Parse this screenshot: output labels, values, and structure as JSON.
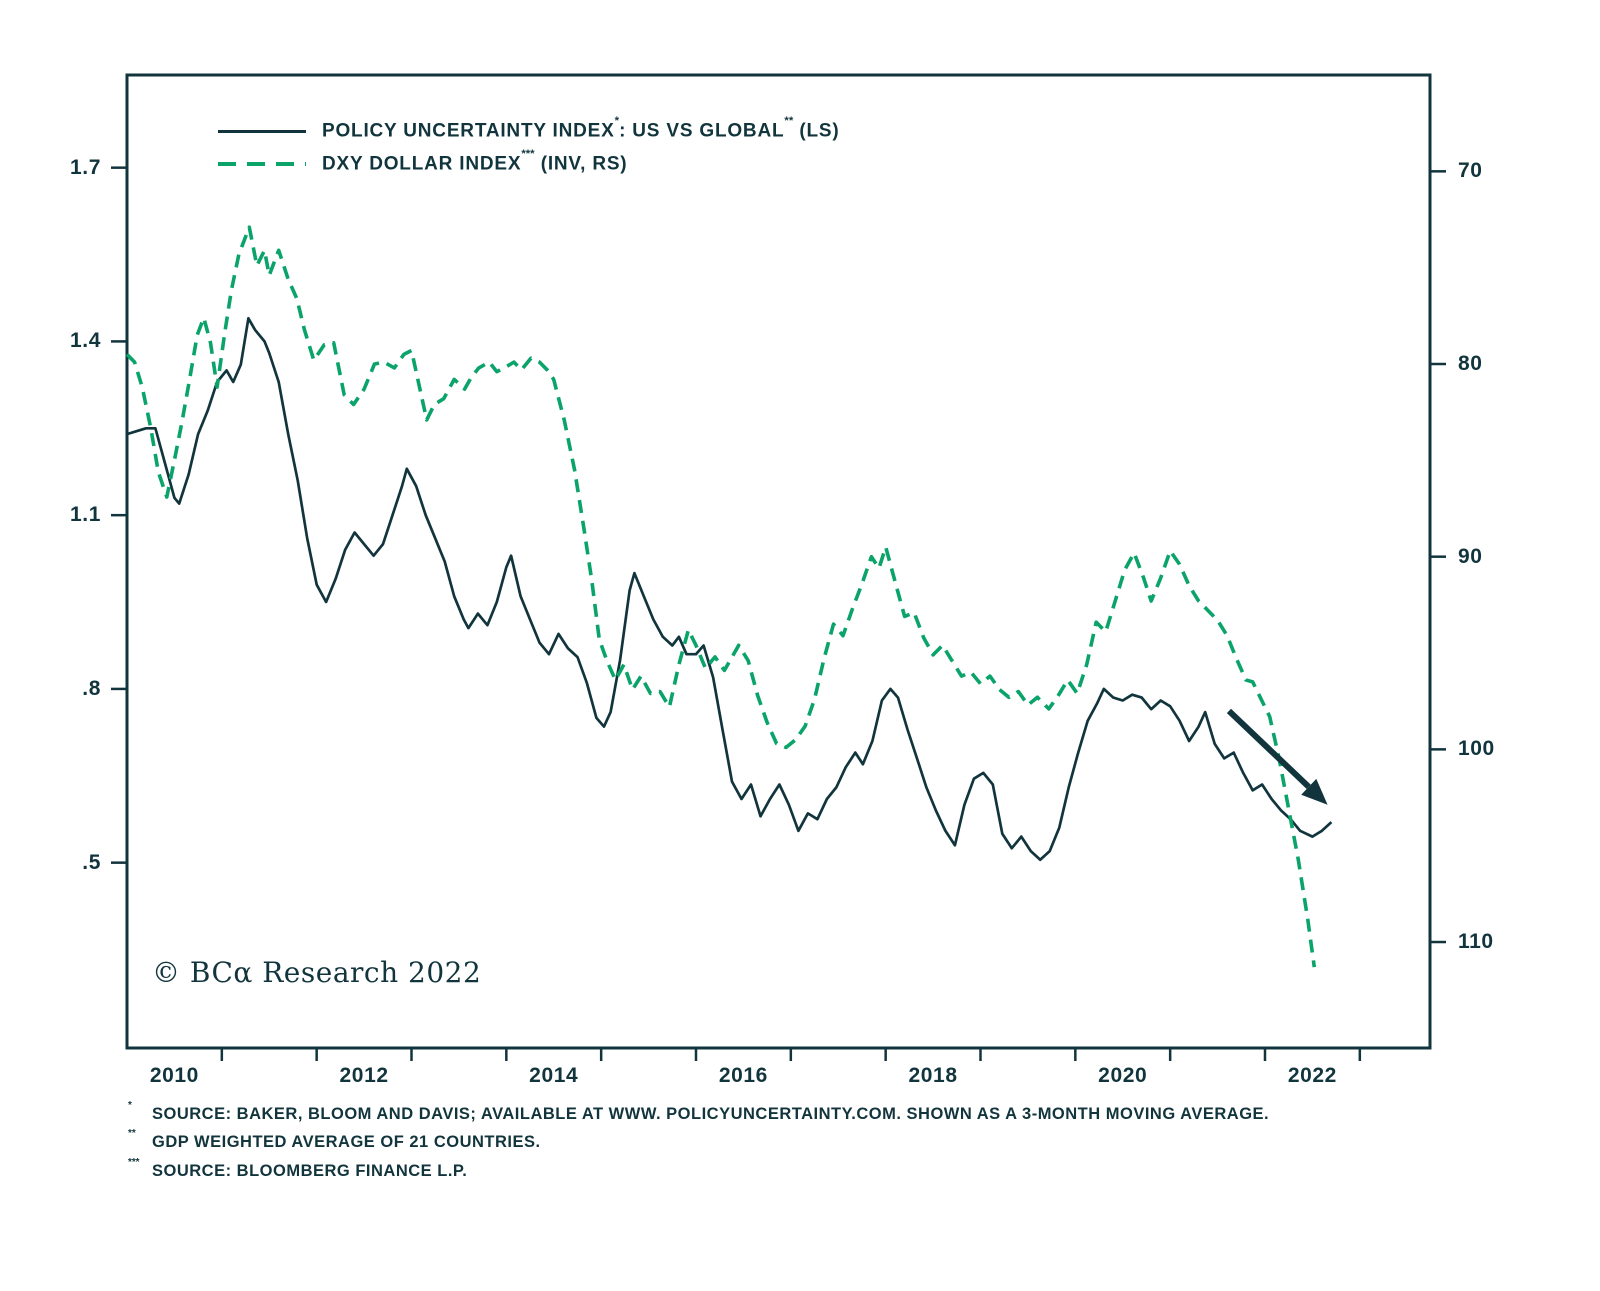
{
  "figure": {
    "copyright": "© BCα Research 2022"
  },
  "colors": {
    "ink": "#12353d",
    "green": "#0aa36a"
  },
  "legend": {
    "items": [
      {
        "text1": "POLICY UNCERTAINTY INDEX",
        "sup1": "*",
        "text2": ": US VS GLOBAL",
        "sup2": "**",
        "text3": " (LS)"
      },
      {
        "text1": "DXY DOLLAR INDEX",
        "sup1": "***",
        "text2": " (INV, RS)"
      }
    ]
  },
  "footnotes": [
    {
      "marker": "*",
      "text": "SOURCE: BAKER, BLOOM AND DAVIS; AVAILABLE AT WWW. POLICYUNCERTAINTY.COM. SHOWN AS A 3-MONTH MOVING AVERAGE."
    },
    {
      "marker": "**",
      "text": "GDP WEIGHTED AVERAGE OF 21 COUNTRIES."
    },
    {
      "marker": "***",
      "text": "SOURCE: BLOOMBERG FINANCE L.P."
    }
  ],
  "chart_data": {
    "type": "line",
    "title": "",
    "grid": false,
    "legend_position": "top-left-inside",
    "x_axis": {
      "label": "",
      "ticks": [
        2010,
        2012,
        2014,
        2016,
        2018,
        2020,
        2022
      ],
      "minor_ticks_every_year": true,
      "range": [
        2010,
        2023.74
      ]
    },
    "y_axis_left": {
      "label": "",
      "ticks": [
        "1.7",
        "1.4",
        "1.1",
        ".8",
        ".5"
      ],
      "tick_values": [
        1.7,
        1.4,
        1.1,
        0.8,
        0.5
      ],
      "range": [
        0.18,
        1.86
      ]
    },
    "y_axis_right": {
      "label": "",
      "inverted": true,
      "ticks": [
        "70",
        "80",
        "90",
        "100",
        "110"
      ],
      "tick_values": [
        70,
        80,
        90,
        100,
        110
      ],
      "range": [
        65,
        115.5
      ]
    },
    "series": [
      {
        "name": "POLICY UNCERTAINTY INDEX: US VS GLOBAL (LS)",
        "axis": "left",
        "line": "solid",
        "color": "#12353d",
        "points": [
          [
            2010.0,
            1.24
          ],
          [
            2010.1,
            1.245
          ],
          [
            2010.2,
            1.25
          ],
          [
            2010.3,
            1.25
          ],
          [
            2010.4,
            1.19
          ],
          [
            2010.5,
            1.13
          ],
          [
            2010.55,
            1.12
          ],
          [
            2010.65,
            1.17
          ],
          [
            2010.75,
            1.24
          ],
          [
            2010.85,
            1.28
          ],
          [
            2010.95,
            1.33
          ],
          [
            2011.05,
            1.35
          ],
          [
            2011.12,
            1.33
          ],
          [
            2011.2,
            1.36
          ],
          [
            2011.28,
            1.44
          ],
          [
            2011.35,
            1.42
          ],
          [
            2011.45,
            1.4
          ],
          [
            2011.5,
            1.38
          ],
          [
            2011.6,
            1.33
          ],
          [
            2011.7,
            1.24
          ],
          [
            2011.8,
            1.16
          ],
          [
            2011.9,
            1.06
          ],
          [
            2012.0,
            0.98
          ],
          [
            2012.1,
            0.95
          ],
          [
            2012.2,
            0.99
          ],
          [
            2012.3,
            1.04
          ],
          [
            2012.4,
            1.07
          ],
          [
            2012.5,
            1.05
          ],
          [
            2012.6,
            1.03
          ],
          [
            2012.7,
            1.05
          ],
          [
            2012.8,
            1.1
          ],
          [
            2012.9,
            1.15
          ],
          [
            2012.95,
            1.18
          ],
          [
            2013.05,
            1.15
          ],
          [
            2013.15,
            1.1
          ],
          [
            2013.25,
            1.06
          ],
          [
            2013.35,
            1.02
          ],
          [
            2013.45,
            0.96
          ],
          [
            2013.55,
            0.92
          ],
          [
            2013.6,
            0.905
          ],
          [
            2013.7,
            0.93
          ],
          [
            2013.8,
            0.91
          ],
          [
            2013.9,
            0.95
          ],
          [
            2014.0,
            1.01
          ],
          [
            2014.05,
            1.03
          ],
          [
            2014.15,
            0.96
          ],
          [
            2014.25,
            0.92
          ],
          [
            2014.35,
            0.88
          ],
          [
            2014.45,
            0.86
          ],
          [
            2014.55,
            0.895
          ],
          [
            2014.65,
            0.87
          ],
          [
            2014.75,
            0.855
          ],
          [
            2014.85,
            0.81
          ],
          [
            2014.95,
            0.75
          ],
          [
            2015.03,
            0.735
          ],
          [
            2015.1,
            0.76
          ],
          [
            2015.2,
            0.85
          ],
          [
            2015.3,
            0.97
          ],
          [
            2015.35,
            1.0
          ],
          [
            2015.45,
            0.96
          ],
          [
            2015.55,
            0.92
          ],
          [
            2015.65,
            0.89
          ],
          [
            2015.75,
            0.875
          ],
          [
            2015.82,
            0.89
          ],
          [
            2015.9,
            0.86
          ],
          [
            2016.0,
            0.86
          ],
          [
            2016.08,
            0.875
          ],
          [
            2016.18,
            0.82
          ],
          [
            2016.28,
            0.73
          ],
          [
            2016.38,
            0.64
          ],
          [
            2016.48,
            0.61
          ],
          [
            2016.58,
            0.635
          ],
          [
            2016.68,
            0.58
          ],
          [
            2016.78,
            0.61
          ],
          [
            2016.88,
            0.635
          ],
          [
            2016.98,
            0.6
          ],
          [
            2017.08,
            0.555
          ],
          [
            2017.18,
            0.585
          ],
          [
            2017.28,
            0.575
          ],
          [
            2017.38,
            0.61
          ],
          [
            2017.48,
            0.63
          ],
          [
            2017.58,
            0.665
          ],
          [
            2017.68,
            0.69
          ],
          [
            2017.76,
            0.67
          ],
          [
            2017.86,
            0.71
          ],
          [
            2017.96,
            0.78
          ],
          [
            2018.05,
            0.8
          ],
          [
            2018.13,
            0.785
          ],
          [
            2018.23,
            0.73
          ],
          [
            2018.33,
            0.68
          ],
          [
            2018.43,
            0.63
          ],
          [
            2018.53,
            0.59
          ],
          [
            2018.63,
            0.555
          ],
          [
            2018.73,
            0.53
          ],
          [
            2018.83,
            0.6
          ],
          [
            2018.93,
            0.645
          ],
          [
            2019.03,
            0.655
          ],
          [
            2019.13,
            0.635
          ],
          [
            2019.23,
            0.55
          ],
          [
            2019.33,
            0.525
          ],
          [
            2019.43,
            0.545
          ],
          [
            2019.53,
            0.52
          ],
          [
            2019.63,
            0.505
          ],
          [
            2019.73,
            0.52
          ],
          [
            2019.83,
            0.56
          ],
          [
            2019.93,
            0.63
          ],
          [
            2020.03,
            0.69
          ],
          [
            2020.13,
            0.745
          ],
          [
            2020.23,
            0.775
          ],
          [
            2020.3,
            0.8
          ],
          [
            2020.4,
            0.785
          ],
          [
            2020.5,
            0.78
          ],
          [
            2020.6,
            0.79
          ],
          [
            2020.7,
            0.785
          ],
          [
            2020.8,
            0.765
          ],
          [
            2020.9,
            0.78
          ],
          [
            2021.0,
            0.77
          ],
          [
            2021.1,
            0.745
          ],
          [
            2021.2,
            0.71
          ],
          [
            2021.3,
            0.735
          ],
          [
            2021.37,
            0.76
          ],
          [
            2021.47,
            0.705
          ],
          [
            2021.57,
            0.68
          ],
          [
            2021.67,
            0.69
          ],
          [
            2021.77,
            0.655
          ],
          [
            2021.87,
            0.625
          ],
          [
            2021.97,
            0.635
          ],
          [
            2022.07,
            0.61
          ],
          [
            2022.17,
            0.59
          ],
          [
            2022.27,
            0.575
          ],
          [
            2022.37,
            0.555
          ],
          [
            2022.5,
            0.545
          ],
          [
            2022.6,
            0.555
          ],
          [
            2022.7,
            0.57
          ]
        ]
      },
      {
        "name": "DXY DOLLAR INDEX (INV, RS)",
        "axis": "right",
        "line": "dashed",
        "color": "#0aa36a",
        "points": [
          [
            2010.0,
            79.5
          ],
          [
            2010.08,
            79.9
          ],
          [
            2010.16,
            81.2
          ],
          [
            2010.25,
            83.3
          ],
          [
            2010.33,
            85.6
          ],
          [
            2010.42,
            86.9
          ],
          [
            2010.5,
            85.0
          ],
          [
            2010.58,
            83.0
          ],
          [
            2010.66,
            80.8
          ],
          [
            2010.74,
            78.5
          ],
          [
            2010.81,
            77.6
          ],
          [
            2010.88,
            78.9
          ],
          [
            2010.95,
            81.2
          ],
          [
            2011.03,
            78.4
          ],
          [
            2011.1,
            76.2
          ],
          [
            2011.18,
            74.3
          ],
          [
            2011.29,
            72.9
          ],
          [
            2011.37,
            74.9
          ],
          [
            2011.45,
            74.1
          ],
          [
            2011.5,
            75.4
          ],
          [
            2011.6,
            74.1
          ],
          [
            2011.7,
            75.6
          ],
          [
            2011.79,
            76.6
          ],
          [
            2011.87,
            78.2
          ],
          [
            2011.97,
            79.8
          ],
          [
            2012.08,
            79.0
          ],
          [
            2012.18,
            78.9
          ],
          [
            2012.29,
            81.6
          ],
          [
            2012.39,
            82.1
          ],
          [
            2012.5,
            81.3
          ],
          [
            2012.61,
            80.0
          ],
          [
            2012.71,
            79.9
          ],
          [
            2012.82,
            80.2
          ],
          [
            2012.92,
            79.5
          ],
          [
            2013.0,
            79.3
          ],
          [
            2013.08,
            81.1
          ],
          [
            2013.16,
            82.9
          ],
          [
            2013.24,
            82.1
          ],
          [
            2013.34,
            81.8
          ],
          [
            2013.45,
            80.8
          ],
          [
            2013.56,
            81.3
          ],
          [
            2013.63,
            80.7
          ],
          [
            2013.71,
            80.2
          ],
          [
            2013.82,
            79.9
          ],
          [
            2013.9,
            80.4
          ],
          [
            2013.98,
            80.2
          ],
          [
            2014.08,
            79.9
          ],
          [
            2014.16,
            80.3
          ],
          [
            2014.26,
            79.7
          ],
          [
            2014.35,
            79.9
          ],
          [
            2014.43,
            80.3
          ],
          [
            2014.5,
            80.8
          ],
          [
            2014.61,
            82.9
          ],
          [
            2014.72,
            85.5
          ],
          [
            2014.82,
            88.6
          ],
          [
            2014.9,
            91.2
          ],
          [
            2014.98,
            94.3
          ],
          [
            2015.06,
            95.4
          ],
          [
            2015.15,
            96.4
          ],
          [
            2015.24,
            95.6
          ],
          [
            2015.33,
            96.9
          ],
          [
            2015.42,
            96.2
          ],
          [
            2015.52,
            97.1
          ],
          [
            2015.62,
            97.0
          ],
          [
            2015.72,
            97.8
          ],
          [
            2015.82,
            95.6
          ],
          [
            2015.92,
            93.8
          ],
          [
            2016.0,
            94.6
          ],
          [
            2016.1,
            95.8
          ],
          [
            2016.2,
            95.2
          ],
          [
            2016.3,
            95.9
          ],
          [
            2016.45,
            94.6
          ],
          [
            2016.55,
            95.4
          ],
          [
            2016.65,
            97.2
          ],
          [
            2016.75,
            98.6
          ],
          [
            2016.85,
            99.7
          ],
          [
            2016.95,
            99.9
          ],
          [
            2017.05,
            99.5
          ],
          [
            2017.15,
            98.8
          ],
          [
            2017.25,
            97.4
          ],
          [
            2017.35,
            95.3
          ],
          [
            2017.45,
            93.5
          ],
          [
            2017.55,
            94.1
          ],
          [
            2017.65,
            92.7
          ],
          [
            2017.75,
            91.4
          ],
          [
            2017.85,
            90.0
          ],
          [
            2017.93,
            90.6
          ],
          [
            2018.0,
            89.5
          ],
          [
            2018.1,
            91.3
          ],
          [
            2018.2,
            93.1
          ],
          [
            2018.3,
            92.9
          ],
          [
            2018.4,
            94.2
          ],
          [
            2018.5,
            95.1
          ],
          [
            2018.6,
            94.6
          ],
          [
            2018.7,
            95.4
          ],
          [
            2018.8,
            96.2
          ],
          [
            2018.9,
            96.0
          ],
          [
            2019.0,
            96.6
          ],
          [
            2019.1,
            96.2
          ],
          [
            2019.2,
            96.9
          ],
          [
            2019.3,
            97.3
          ],
          [
            2019.4,
            97.0
          ],
          [
            2019.5,
            97.7
          ],
          [
            2019.6,
            97.3
          ],
          [
            2019.72,
            97.9
          ],
          [
            2019.82,
            97.2
          ],
          [
            2019.92,
            96.4
          ],
          [
            2020.02,
            97.1
          ],
          [
            2020.12,
            95.6
          ],
          [
            2020.22,
            93.4
          ],
          [
            2020.32,
            93.9
          ],
          [
            2020.42,
            92.3
          ],
          [
            2020.52,
            90.7
          ],
          [
            2020.62,
            89.8
          ],
          [
            2020.72,
            91.1
          ],
          [
            2020.8,
            92.3
          ],
          [
            2020.9,
            91.1
          ],
          [
            2021.0,
            89.7
          ],
          [
            2021.1,
            90.4
          ],
          [
            2021.2,
            91.5
          ],
          [
            2021.3,
            92.3
          ],
          [
            2021.4,
            92.8
          ],
          [
            2021.5,
            93.3
          ],
          [
            2021.6,
            94.1
          ],
          [
            2021.7,
            95.3
          ],
          [
            2021.8,
            96.4
          ],
          [
            2021.87,
            96.5
          ],
          [
            2021.95,
            97.3
          ],
          [
            2022.05,
            98.3
          ],
          [
            2022.15,
            100.5
          ],
          [
            2022.25,
            103.1
          ],
          [
            2022.35,
            105.7
          ],
          [
            2022.45,
            108.8
          ],
          [
            2022.52,
            111.3
          ]
        ]
      }
    ],
    "annotations": [
      {
        "type": "arrow",
        "color": "#12353d",
        "axis": "left",
        "from": [
          2021.62,
          0.762
        ],
        "to": [
          2022.66,
          0.6
        ]
      }
    ]
  }
}
